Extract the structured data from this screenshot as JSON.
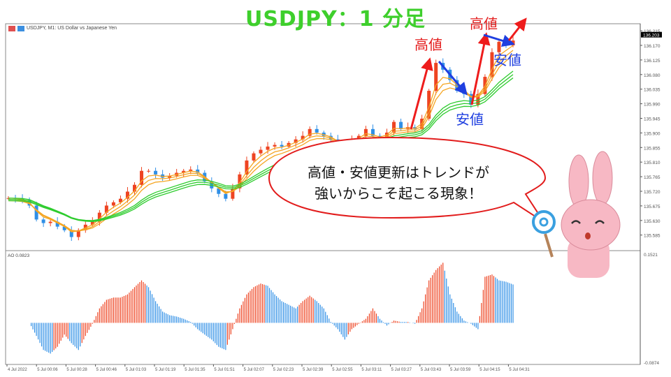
{
  "title": "USDJPY：1 分足",
  "header": {
    "symbol_text": "USDJPY, M1:  US Dollar vs Japanese Yen",
    "icons": [
      "indicator-list-icon",
      "chart-icon"
    ]
  },
  "annotations": {
    "high1": "高値",
    "high2": "高値",
    "low1": "安値",
    "low2": "安値",
    "bubble_line1": "高値・安値更新はトレンドが",
    "bubble_line2": "強いからこそ起こる現象！"
  },
  "colors": {
    "title": "#3ecf2c",
    "up_arrow": "#ee1c1c",
    "down_arrow": "#1f3fe0",
    "bull": "#ee4422",
    "bear": "#2f8fe6",
    "ma_fast": "#f5a623",
    "ma_slow": "#2ecc2e"
  },
  "chart_data": [
    {
      "type": "candlestick",
      "title": "USDJPY, M1",
      "price_axis_ticks": [
        "136.215",
        "136.170",
        "136.125",
        "136.080",
        "136.035",
        "135.990",
        "135.945",
        "135.900",
        "135.855",
        "135.810",
        "135.765",
        "135.720",
        "135.675",
        "135.630",
        "135.585"
      ],
      "current_price": "136.203",
      "ylim": [
        135.55,
        136.225
      ],
      "time_ticks": [
        "4 Jul 2022",
        "5 Jul 00:06",
        "5 Jul 00:28",
        "5 Jul 00:46",
        "5 Jul 01:03",
        "5 Jul 01:19",
        "5 Jul 01:35",
        "5 Jul 01:51",
        "5 Jul 02:07",
        "5 Jul 02:23",
        "5 Jul 02:39",
        "5 Jul 02:55",
        "5 Jul 03:11",
        "5 Jul 03:27",
        "5 Jul 03:43",
        "5 Jul 03:59",
        "5 Jul 04:15",
        "5 Jul 04:31"
      ],
      "closes": [
        135.699,
        135.697,
        135.693,
        135.676,
        135.633,
        135.622,
        135.626,
        135.611,
        135.6,
        135.579,
        135.6,
        135.617,
        135.626,
        135.654,
        135.676,
        135.686,
        135.697,
        135.719,
        135.74,
        135.783,
        135.783,
        135.772,
        135.762,
        135.768,
        135.777,
        135.783,
        135.787,
        135.777,
        135.751,
        135.729,
        135.712,
        135.697,
        135.729,
        135.772,
        135.815,
        135.837,
        135.848,
        135.858,
        135.863,
        135.858,
        135.869,
        135.88,
        135.891,
        135.912,
        135.901,
        135.891,
        135.88,
        135.863,
        135.869,
        135.88,
        135.891,
        135.912,
        135.891,
        135.88,
        135.901,
        135.934,
        135.912,
        135.918,
        135.912,
        135.944,
        136.03,
        136.116,
        136.095,
        136.063,
        136.03,
        136.02,
        135.987,
        136.02,
        136.073,
        136.149,
        136.181,
        136.17,
        136.185
      ],
      "moving_averages": [
        "orange (fast)",
        "green (slow)"
      ]
    },
    {
      "type": "bar",
      "title": "AO 0.0823",
      "label": "AO 0.0823",
      "ylim": [
        -0.0874,
        0.1521
      ],
      "axis_ticks": [
        "0.1521",
        "-0.0874"
      ],
      "values": [
        0,
        0,
        0,
        0,
        -0.029,
        -0.06,
        -0.068,
        -0.053,
        -0.026,
        -0.045,
        -0.06,
        -0.029,
        -0.002,
        0.032,
        0.051,
        0.056,
        0.056,
        0.063,
        0.079,
        0.094,
        0.079,
        0.048,
        0.025,
        0.017,
        0.014,
        0.009,
        0.002,
        -0.014,
        -0.026,
        -0.037,
        -0.053,
        -0.06,
        -0.014,
        0.032,
        0.063,
        0.079,
        0.087,
        0.082,
        0.063,
        0.048,
        0.04,
        0.032,
        0.048,
        0.06,
        0.048,
        0.032,
        0.002,
        -0.014,
        -0.037,
        -0.014,
        -0.002,
        0.009,
        0.032,
        0.009,
        -0.006,
        0.005,
        0.002,
        0.002,
        -0.002,
        0.032,
        0.094,
        0.117,
        0.133,
        0.063,
        0.025,
        0.005,
        -0.002,
        -0.014,
        0.102,
        0.107,
        0.094,
        0.091,
        0.085
      ]
    }
  ]
}
